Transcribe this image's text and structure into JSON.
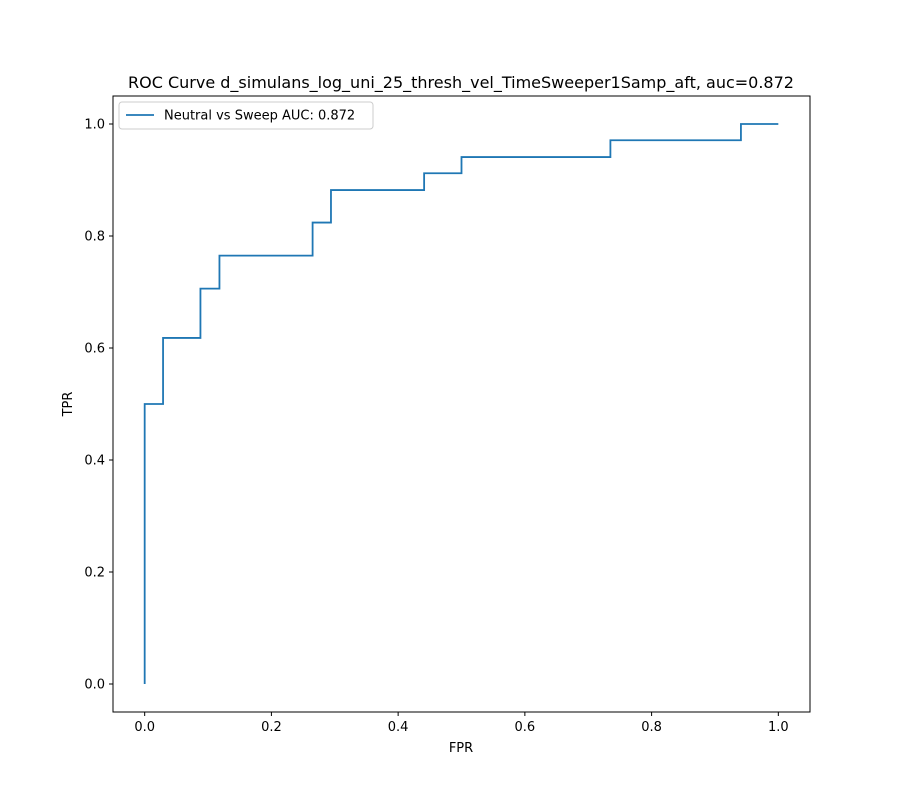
{
  "chart_data": {
    "type": "line",
    "title": "ROC Curve d_simulans_log_uni_25_thresh_vel_TimeSweeper1Samp_aft, auc=0.872",
    "xlabel": "FPR",
    "ylabel": "TPR",
    "xlim": [
      -0.05,
      1.05
    ],
    "ylim": [
      -0.05,
      1.05
    ],
    "xticks": [
      0.0,
      0.2,
      0.4,
      0.6,
      0.8,
      1.0
    ],
    "xtick_labels": [
      "0.0",
      "0.2",
      "0.4",
      "0.6",
      "0.8",
      "1.0"
    ],
    "yticks": [
      0.0,
      0.2,
      0.4,
      0.6,
      0.8,
      1.0
    ],
    "ytick_labels": [
      "0.0",
      "0.2",
      "0.4",
      "0.6",
      "0.8",
      "1.0"
    ],
    "grid": false,
    "legend_position": "top-left",
    "series": [
      {
        "name": "Neutral vs Sweep AUC: 0.872",
        "color": "#1f77b4",
        "x": [
          0.0,
          0.0,
          0.029,
          0.029,
          0.088,
          0.088,
          0.118,
          0.118,
          0.265,
          0.265,
          0.294,
          0.294,
          0.441,
          0.441,
          0.5,
          0.5,
          0.735,
          0.735,
          0.941,
          0.941,
          1.0
        ],
        "y": [
          0.0,
          0.5,
          0.5,
          0.618,
          0.618,
          0.706,
          0.706,
          0.765,
          0.765,
          0.824,
          0.824,
          0.882,
          0.882,
          0.912,
          0.912,
          0.941,
          0.941,
          0.971,
          0.971,
          1.0,
          1.0
        ]
      }
    ]
  }
}
